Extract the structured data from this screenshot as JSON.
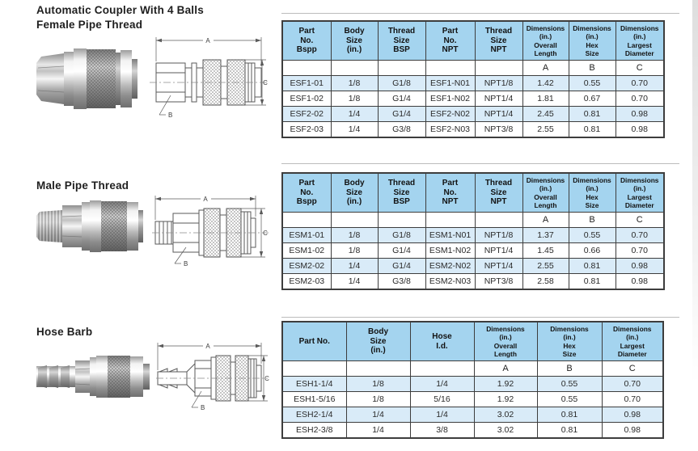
{
  "colors": {
    "header_bg": "#a4d4ef",
    "row_alt_bg": "#d9ebf8",
    "table_border": "#3d3d3d",
    "heading_text": "#1f1f1f",
    "cell_text": "#2a2a2a"
  },
  "sections": [
    {
      "titles": [
        "Automatic Coupler With 4 Balls",
        "Female Pipe Thread"
      ],
      "drawing": {
        "dim_a": "A",
        "dim_b": "B",
        "dim_c": "C"
      },
      "table": {
        "headers": [
          [
            "Part",
            "No.",
            "Bspp"
          ],
          [
            "Body",
            "Size",
            "(in.)"
          ],
          [
            "Thread",
            "Size",
            "BSP"
          ],
          [
            "Part",
            "No.",
            "NPT"
          ],
          [
            "Thread",
            "Size",
            "NPT"
          ],
          [
            "Dimensions",
            "(in.)",
            "Overall",
            "Length"
          ],
          [
            "Dimensions",
            "(in.)",
            "Hex",
            "Size"
          ],
          [
            "Dimensions",
            "(in.)",
            "Largest",
            "Diameter"
          ]
        ],
        "subheaders": [
          "",
          "",
          "",
          "",
          "",
          "A",
          "B",
          "C"
        ],
        "rows": [
          [
            "ESF1-01",
            "1/8",
            "G1/8",
            "ESF1-N01",
            "NPT1/8",
            "1.42",
            "0.55",
            "0.70"
          ],
          [
            "ESF1-02",
            "1/8",
            "G1/4",
            "ESF1-N02",
            "NPT1/4",
            "1.81",
            "0.67",
            "0.70"
          ],
          [
            "ESF2-02",
            "1/4",
            "G1/4",
            "ESF2-N02",
            "NPT1/4",
            "2.45",
            "0.81",
            "0.98"
          ],
          [
            "ESF2-03",
            "1/4",
            "G3/8",
            "ESF2-N03",
            "NPT3/8",
            "2.55",
            "0.81",
            "0.98"
          ]
        ]
      }
    },
    {
      "titles": [
        "Male Pipe Thread"
      ],
      "drawing": {
        "dim_a": "A",
        "dim_b": "B",
        "dim_c": "C"
      },
      "table": {
        "headers": [
          [
            "Part",
            "No.",
            "Bspp"
          ],
          [
            "Body",
            "Size",
            "(in.)"
          ],
          [
            "Thread",
            "Size",
            "BSP"
          ],
          [
            "Part",
            "No.",
            "NPT"
          ],
          [
            "Thread",
            "Size",
            "NPT"
          ],
          [
            "Dimensions",
            "(in.)",
            "Overall",
            "Length"
          ],
          [
            "Dimensions",
            "(in.)",
            "Hex",
            "Size"
          ],
          [
            "Dimensions",
            "(in.)",
            "Largest",
            "Diameter"
          ]
        ],
        "subheaders": [
          "",
          "",
          "",
          "",
          "",
          "A",
          "B",
          "C"
        ],
        "rows": [
          [
            "ESM1-01",
            "1/8",
            "G1/8",
            "ESM1-N01",
            "NPT1/8",
            "1.37",
            "0.55",
            "0.70"
          ],
          [
            "ESM1-02",
            "1/8",
            "G1/4",
            "ESM1-N02",
            "NPT1/4",
            "1.45",
            "0.66",
            "0.70"
          ],
          [
            "ESM2-02",
            "1/4",
            "G1/4",
            "ESM2-N02",
            "NPT1/4",
            "2.55",
            "0.81",
            "0.98"
          ],
          [
            "ESM2-03",
            "1/4",
            "G3/8",
            "ESM2-N03",
            "NPT3/8",
            "2.58",
            "0.81",
            "0.98"
          ]
        ]
      }
    },
    {
      "titles": [
        "Hose Barb"
      ],
      "drawing": {
        "dim_a": "A",
        "dim_b": "B",
        "dim_c": "C"
      },
      "table": {
        "headers": [
          [
            "Part No."
          ],
          [
            "Body",
            "Size",
            "(in.)"
          ],
          [
            "Hose",
            "I.d."
          ],
          [
            "Dimensions",
            "(in.)",
            "Overall",
            "Length"
          ],
          [
            "Dimensions",
            "(in.)",
            "Hex",
            "Size"
          ],
          [
            "Dimensions",
            "(in.)",
            "Largest",
            "Diameter"
          ]
        ],
        "subheaders": [
          "",
          "",
          "",
          "A",
          "B",
          "C"
        ],
        "rows": [
          [
            "ESH1-1/4",
            "1/8",
            "1/4",
            "1.92",
            "0.55",
            "0.70"
          ],
          [
            "ESH1-5/16",
            "1/8",
            "5/16",
            "1.92",
            "0.55",
            "0.70"
          ],
          [
            "ESH2-1/4",
            "1/4",
            "1/4",
            "3.02",
            "0.81",
            "0.98"
          ],
          [
            "ESH2-3/8",
            "1/4",
            "3/8",
            "3.02",
            "0.81",
            "0.98"
          ]
        ]
      }
    }
  ]
}
